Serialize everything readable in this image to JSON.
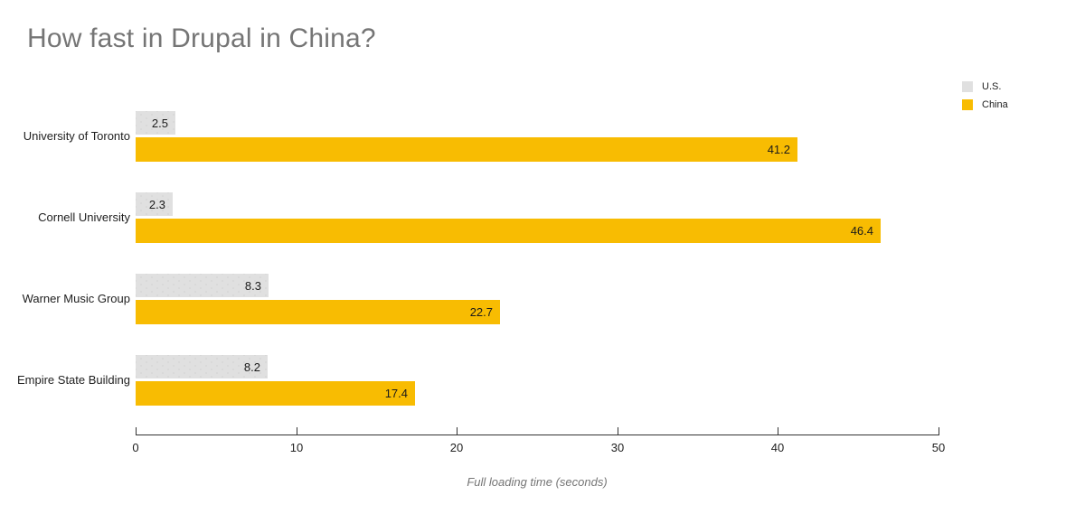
{
  "title": "How fast in Drupal in China?",
  "chart_data": {
    "type": "bar",
    "orientation": "horizontal",
    "title": "How fast in Drupal in China?",
    "categories": [
      "University of Toronto",
      "Cornell University",
      "Warner Music Group",
      "Empire State Building"
    ],
    "series": [
      {
        "name": "U.S.",
        "color": "#e0e0e0",
        "values": [
          2.5,
          2.3,
          8.3,
          8.2
        ]
      },
      {
        "name": "China",
        "color": "#f8bc02",
        "values": [
          41.2,
          46.4,
          22.7,
          17.4
        ]
      }
    ],
    "xlabel": "Full loading time (seconds)",
    "xlim": [
      0,
      50
    ],
    "xticks": [
      "0",
      "10",
      "20",
      "30",
      "40",
      "50"
    ],
    "grid": false,
    "legend_position": "top-right",
    "value_labels": true
  },
  "colors": {
    "title_text": "#757575",
    "axis_label_text": "#757575",
    "body_text": "#212121",
    "axis_line": "#333333",
    "us_bar": "#e0e0e0",
    "china_bar": "#f8bc02"
  }
}
